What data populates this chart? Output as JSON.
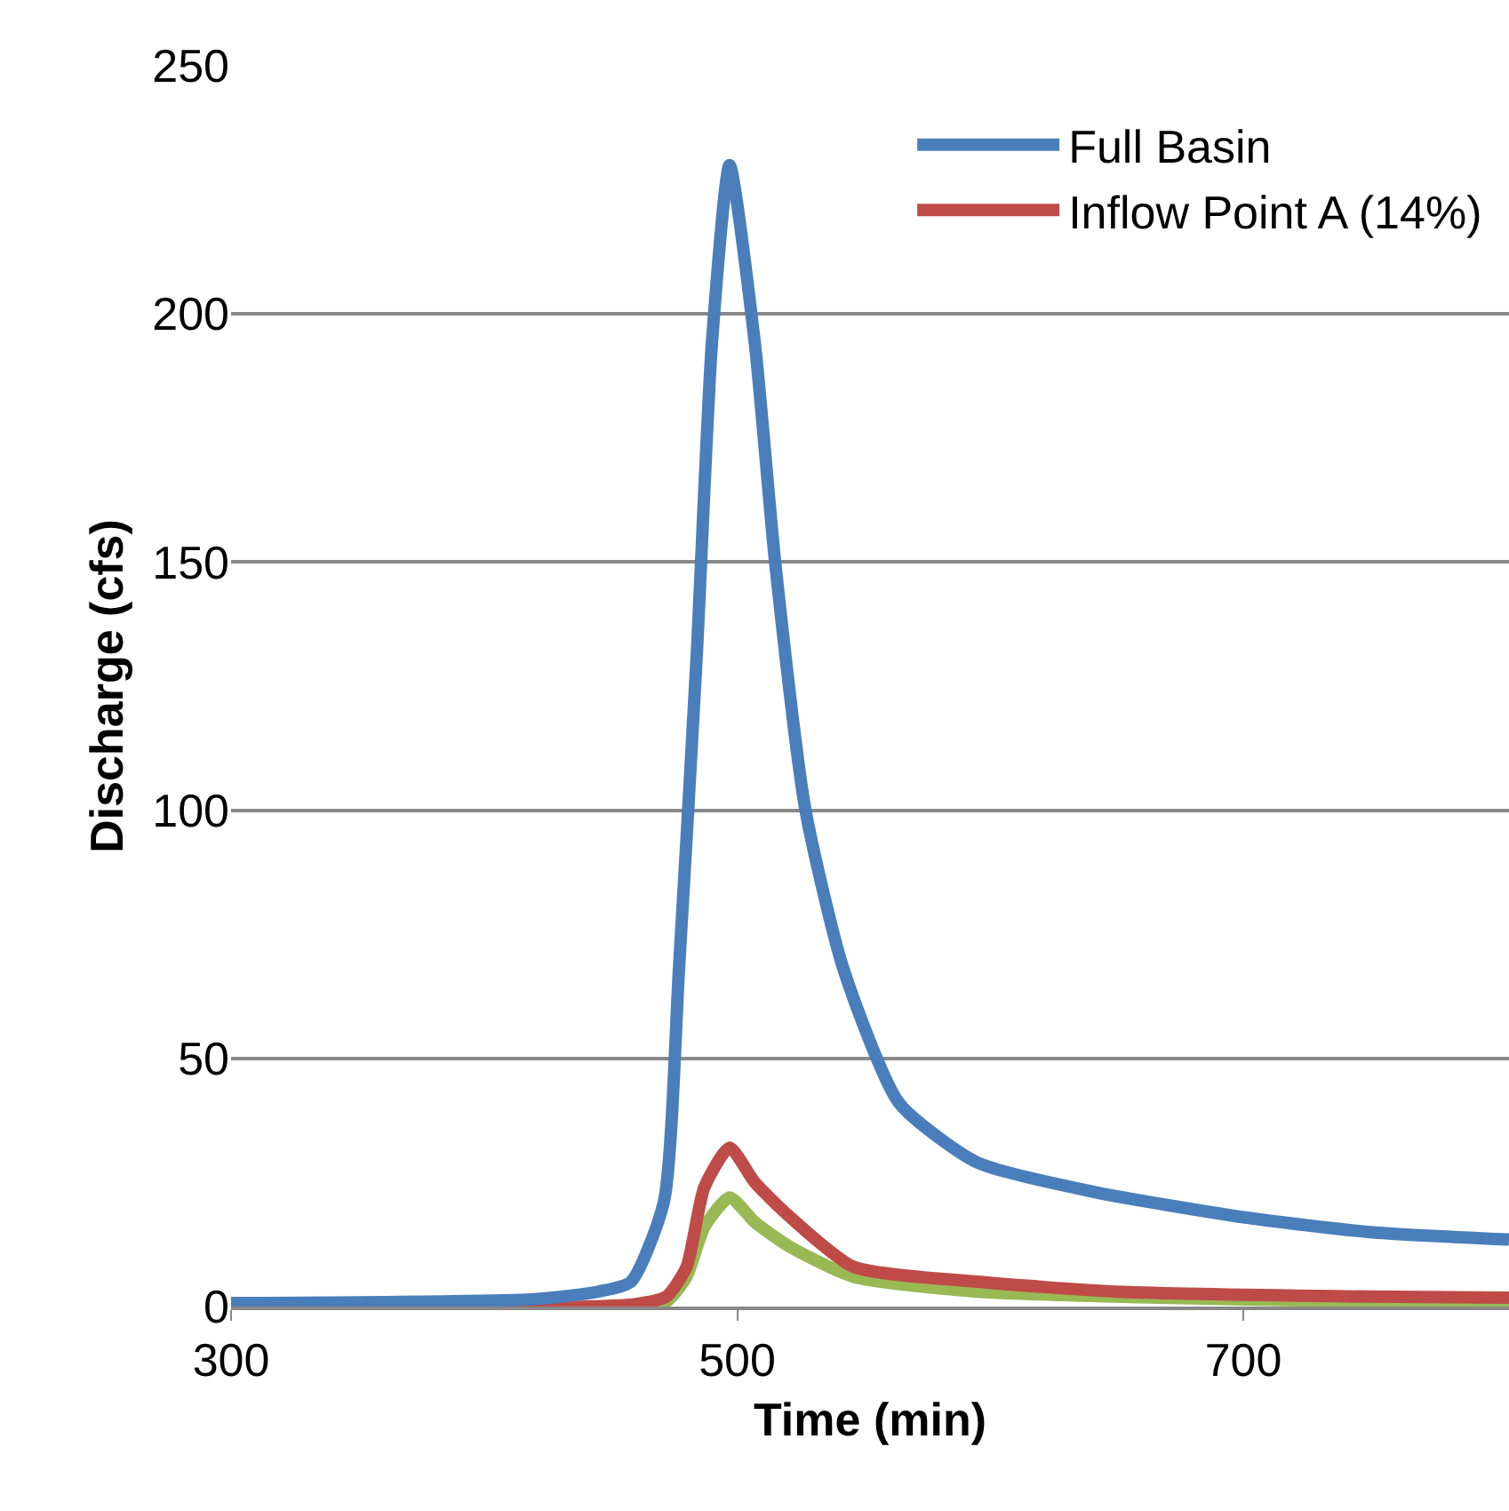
{
  "chart_data": {
    "type": "line",
    "xlabel": "Time (min)",
    "ylabel": "Discharge (cfs)",
    "xlim": [
      300,
      805
    ],
    "xticks": [
      300,
      500,
      700
    ],
    "ylim": [
      0,
      250
    ],
    "yticks": [
      0,
      50,
      100,
      150,
      200,
      250
    ],
    "grid": "y",
    "legend": "top right",
    "marker": "none",
    "line_style": "solid",
    "series": [
      {
        "name": "Full Basin",
        "color": "#4a7ebb",
        "x": [
          300,
          420,
          445,
          458,
          471,
          477,
          484,
          490,
          497,
          507,
          515,
          527,
          542,
          564,
          595,
          642,
          700,
          750,
          805
        ],
        "values": [
          0.7,
          1.5,
          3,
          5,
          21,
          68,
          131,
          194,
          230,
          194,
          150,
          100,
          68,
          41,
          29,
          23,
          18,
          15,
          13.5
        ]
      },
      {
        "name": "Inflow Point A (14%)",
        "color": "#be4b48",
        "x": [
          300,
          440,
          460,
          472,
          480,
          487,
          497,
          507,
          521,
          546,
          595,
          650,
          750,
          805
        ],
        "values": [
          0,
          0,
          0.5,
          2,
          8,
          24,
          32,
          25,
          18,
          8,
          5,
          3,
          2,
          1.8
        ]
      },
      {
        "color": "#98b954",
        "x": [
          300,
          460,
          472,
          480,
          487,
          497,
          507,
          521,
          546,
          595,
          650,
          750,
          805
        ],
        "values": [
          0,
          0,
          1,
          6,
          16,
          22,
          17,
          12,
          6,
          3,
          2,
          1,
          1
        ]
      }
    ]
  }
}
